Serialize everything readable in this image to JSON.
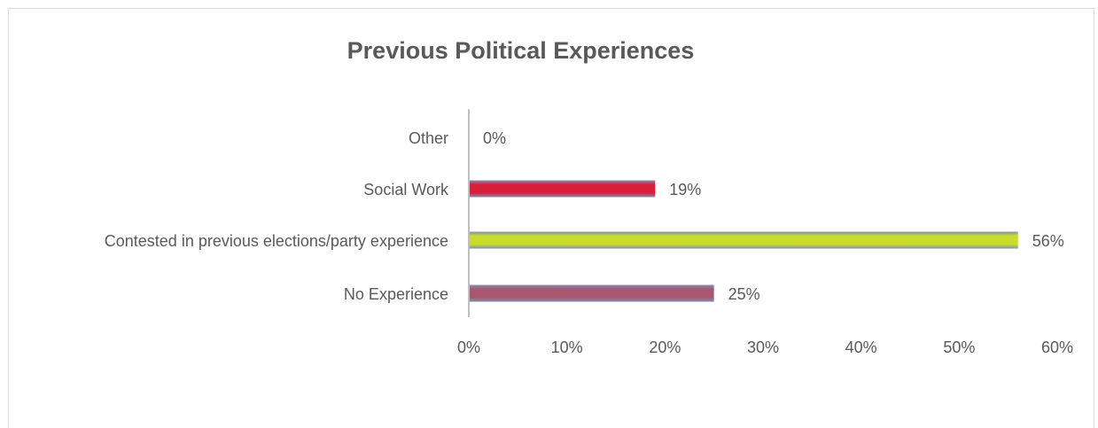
{
  "chart_data": {
    "type": "bar",
    "orientation": "horizontal",
    "title": "Previous Political Experiences",
    "xlabel": "",
    "ylabel": "",
    "categories": [
      "Other",
      "Social Work",
      "Contested in previous elections/party experience",
      "No Experience"
    ],
    "values": [
      0,
      19,
      56,
      25
    ],
    "data_labels": [
      "0%",
      "19%",
      "56%",
      "25%"
    ],
    "bar_colors": [
      "#d81f3a",
      "#d81f3a",
      "#c9dc2b",
      "#a85770"
    ],
    "xlim": [
      0,
      60
    ],
    "x_ticks": [
      0,
      10,
      20,
      30,
      40,
      50,
      60
    ],
    "x_tick_labels": [
      "0%",
      "10%",
      "20%",
      "30%",
      "40%",
      "50%",
      "60%"
    ],
    "grid": false,
    "legend": "none"
  }
}
